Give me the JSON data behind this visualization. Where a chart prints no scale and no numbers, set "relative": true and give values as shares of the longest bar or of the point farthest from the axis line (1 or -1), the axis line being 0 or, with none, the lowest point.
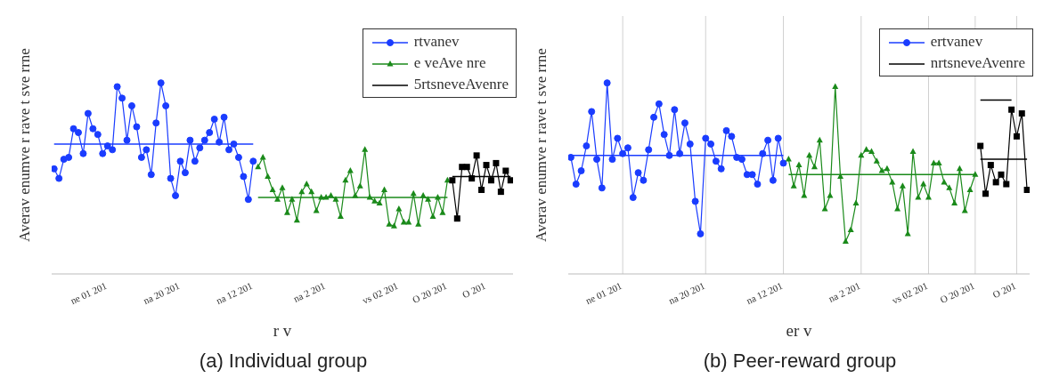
{
  "chart_data": [
    {
      "type": "line",
      "title": "(a) Individual group",
      "xlabel": "r  v",
      "ylabel": "Averav enumve r  rave t sve rrne",
      "relative": true,
      "legend": "top right",
      "line_style": "solid",
      "categories": [
        null,
        null,
        null,
        null,
        null,
        null,
        null,
        null,
        null,
        null,
        null,
        "ne 01 201",
        null,
        null,
        null,
        null,
        null,
        null,
        null,
        null,
        null,
        null,
        null,
        null,
        null,
        null,
        "na 20 201",
        null,
        null,
        null,
        null,
        null,
        null,
        null,
        null,
        null,
        null,
        null,
        null,
        null,
        null,
        "na 12 201",
        null,
        null,
        null,
        null,
        null,
        null,
        null,
        null,
        null,
        null,
        null,
        null,
        null,
        null,
        "na  2 201",
        null,
        null,
        null,
        null,
        null,
        null,
        null,
        null,
        null,
        null,
        null,
        null,
        null,
        null,
        "vs 02 201",
        null,
        null,
        null,
        null,
        null,
        null,
        null,
        null,
        null,
        "O 20 201",
        null,
        null,
        null,
        null,
        null,
        null,
        null,
        "O     201",
        null,
        null,
        null,
        null,
        null
      ],
      "series": [
        {
          "name": "rtvanev",
          "color": "#1a3cff",
          "marker": "circle",
          "values": [
            0.55,
            0.5,
            0.6,
            0.61,
            0.76,
            0.74,
            0.63,
            0.84,
            0.76,
            0.73,
            0.63,
            0.67,
            0.65,
            0.98,
            0.92,
            0.7,
            0.88,
            0.77,
            0.61,
            0.65,
            0.52,
            0.79,
            1,
            0.88,
            0.5,
            0.41,
            0.59,
            0.53,
            0.7,
            0.59,
            0.66,
            0.7,
            0.74,
            0.81,
            0.69,
            0.82,
            0.65,
            0.68,
            0.61,
            0.51,
            0.39,
            0.59,
            null,
            null,
            null,
            null,
            null,
            null,
            null,
            null,
            null,
            null,
            null,
            null,
            null,
            null,
            null,
            null,
            null,
            null,
            null,
            null,
            null,
            null,
            null,
            null,
            null,
            null,
            null,
            null,
            null,
            null,
            null,
            null,
            null,
            null,
            null,
            null,
            null,
            null,
            null,
            null,
            null,
            null,
            null,
            null,
            null,
            null,
            null,
            null,
            null,
            null,
            null,
            null,
            null
          ]
        },
        {
          "color": "#1a3cff",
          "marker": "none",
          "values": [
            0.68,
            0.68,
            0.68,
            0.68,
            0.68,
            0.68,
            0.68,
            0.68,
            0.68,
            0.68,
            0.68,
            0.68,
            0.68,
            0.68,
            0.68,
            0.68,
            0.68,
            0.68,
            0.68,
            0.68,
            0.68,
            0.68,
            0.68,
            0.68,
            0.68,
            0.68,
            0.68,
            0.68,
            0.68,
            0.68,
            0.68,
            0.68,
            0.68,
            0.68,
            0.68,
            0.68,
            0.68,
            0.68,
            0.68,
            0.68,
            0.68,
            0.68,
            null,
            null,
            null,
            null,
            null,
            null,
            null,
            null,
            null,
            null,
            null,
            null,
            null,
            null,
            null,
            null,
            null,
            null,
            null,
            null,
            null,
            null,
            null,
            null,
            null,
            null,
            null,
            null,
            null,
            null,
            null,
            null,
            null,
            null,
            null,
            null,
            null,
            null,
            null,
            null,
            null,
            null,
            null,
            null,
            null,
            null,
            null,
            null,
            null,
            null,
            null,
            null,
            null
          ]
        },
        {
          "name": "e veAve nre",
          "color": "#1a8a1a",
          "marker": "triangle",
          "values": [
            null,
            null,
            null,
            null,
            null,
            null,
            null,
            null,
            null,
            null,
            null,
            null,
            null,
            null,
            null,
            null,
            null,
            null,
            null,
            null,
            null,
            null,
            null,
            null,
            null,
            null,
            null,
            null,
            null,
            null,
            null,
            null,
            null,
            null,
            null,
            null,
            null,
            null,
            null,
            null,
            null,
            null,
            0.56,
            0.61,
            0.51,
            0.44,
            0.39,
            0.45,
            0.32,
            0.39,
            0.28,
            0.43,
            0.47,
            0.43,
            0.33,
            0.4,
            0.4,
            0.41,
            0.39,
            0.3,
            0.49,
            0.54,
            0.41,
            0.46,
            0.65,
            0.4,
            0.38,
            0.37,
            0.44,
            0.26,
            0.25,
            0.34,
            0.27,
            0.27,
            0.42,
            0.26,
            0.41,
            0.39,
            0.3,
            0.4,
            0.32,
            0.49,
            null,
            null,
            null,
            null,
            null,
            null,
            null,
            null,
            null,
            null,
            null,
            null,
            null
          ]
        },
        {
          "color": "#1a8a1a",
          "marker": "none",
          "values": [
            null,
            null,
            null,
            null,
            null,
            null,
            null,
            null,
            null,
            null,
            null,
            null,
            null,
            null,
            null,
            null,
            null,
            null,
            null,
            null,
            null,
            null,
            null,
            null,
            null,
            null,
            null,
            null,
            null,
            null,
            null,
            null,
            null,
            null,
            null,
            null,
            null,
            null,
            null,
            null,
            null,
            null,
            0.4,
            0.4,
            0.4,
            0.4,
            0.4,
            0.4,
            0.4,
            0.4,
            0.4,
            0.4,
            0.4,
            0.4,
            0.4,
            0.4,
            0.4,
            0.4,
            0.4,
            0.4,
            0.4,
            0.4,
            0.4,
            0.4,
            0.4,
            0.4,
            0.4,
            0.4,
            0.4,
            0.4,
            0.4,
            0.4,
            0.4,
            0.4,
            0.4,
            0.4,
            0.4,
            0.4,
            0.4,
            0.4,
            0.4,
            0.4,
            null,
            null,
            null,
            null,
            null,
            null,
            null,
            null,
            null,
            null,
            null,
            null,
            null
          ]
        },
        {
          "color": "#000000",
          "marker": "square",
          "values": [
            null,
            null,
            null,
            null,
            null,
            null,
            null,
            null,
            null,
            null,
            null,
            null,
            null,
            null,
            null,
            null,
            null,
            null,
            null,
            null,
            null,
            null,
            null,
            null,
            null,
            null,
            null,
            null,
            null,
            null,
            null,
            null,
            null,
            null,
            null,
            null,
            null,
            null,
            null,
            null,
            null,
            null,
            null,
            null,
            null,
            null,
            null,
            null,
            null,
            null,
            null,
            null,
            null,
            null,
            null,
            null,
            null,
            null,
            null,
            null,
            null,
            null,
            null,
            null,
            null,
            null,
            null,
            null,
            null,
            null,
            null,
            null,
            null,
            null,
            null,
            null,
            null,
            null,
            null,
            null,
            null,
            null,
            0.49,
            0.29,
            0.56,
            0.56,
            0.5,
            0.62,
            0.44,
            0.57,
            0.49,
            0.58,
            0.43,
            0.54,
            0.49
          ]
        },
        {
          "name": "5rtsneveAvenre",
          "color": "#000000",
          "marker": "none",
          "values": [
            null,
            null,
            null,
            null,
            null,
            null,
            null,
            null,
            null,
            null,
            null,
            null,
            null,
            null,
            null,
            null,
            null,
            null,
            null,
            null,
            null,
            null,
            null,
            null,
            null,
            null,
            null,
            null,
            null,
            null,
            null,
            null,
            null,
            null,
            null,
            null,
            null,
            null,
            null,
            null,
            null,
            null,
            null,
            null,
            null,
            null,
            null,
            null,
            null,
            null,
            null,
            null,
            null,
            null,
            null,
            null,
            null,
            null,
            null,
            null,
            null,
            null,
            null,
            null,
            null,
            null,
            null,
            null,
            null,
            null,
            null,
            null,
            null,
            null,
            null,
            null,
            null,
            null,
            null,
            null,
            null,
            null,
            0.51,
            0.51,
            0.51,
            0.51,
            0.51,
            0.51,
            0.51,
            0.51,
            0.51,
            0.51,
            0.51,
            0.51,
            0.51
          ]
        }
      ]
    },
    {
      "type": "line",
      "title": "(b) Peer-reward group",
      "xlabel": "er v",
      "ylabel": "Averav enumve r  rave t sve rrne",
      "relative": true,
      "grid": "x",
      "legend": "top right",
      "line_style": "solid",
      "categories": [
        null,
        null,
        null,
        null,
        null,
        null,
        null,
        null,
        null,
        null,
        "ne 01 201",
        null,
        null,
        null,
        null,
        null,
        null,
        null,
        null,
        null,
        null,
        null,
        null,
        null,
        null,
        null,
        "na 20 201",
        null,
        null,
        null,
        null,
        null,
        null,
        null,
        null,
        null,
        null,
        null,
        null,
        null,
        null,
        "na 12 201",
        null,
        null,
        null,
        null,
        null,
        null,
        null,
        null,
        null,
        null,
        null,
        null,
        null,
        null,
        "na  2 201",
        null,
        null,
        null,
        null,
        null,
        null,
        null,
        null,
        null,
        null,
        null,
        null,
        "vs 02 201",
        null,
        null,
        null,
        null,
        null,
        null,
        null,
        null,
        "O 20 201",
        null,
        null,
        null,
        null,
        null,
        null,
        null,
        "O     201",
        null,
        null
      ],
      "series": [
        {
          "name": "ertvanev",
          "color": "#1a3cff",
          "marker": "circle",
          "values": [
            0.61,
            0.47,
            0.54,
            0.67,
            0.85,
            0.6,
            0.45,
            1,
            0.6,
            0.71,
            0.63,
            0.66,
            0.4,
            0.53,
            0.49,
            0.65,
            0.82,
            0.89,
            0.73,
            0.62,
            0.86,
            0.63,
            0.79,
            0.68,
            0.38,
            0.21,
            0.71,
            0.68,
            0.59,
            0.55,
            0.75,
            0.72,
            0.61,
            0.6,
            0.52,
            0.52,
            0.47,
            0.63,
            0.7,
            0.49,
            0.71,
            0.58,
            null,
            null,
            null,
            null,
            null,
            null,
            null,
            null,
            null,
            null,
            null,
            null,
            null,
            null,
            null,
            null,
            null,
            null,
            null,
            null,
            null,
            null,
            null,
            null,
            null,
            null,
            null,
            null,
            null,
            null,
            null,
            null,
            null,
            null,
            null,
            null,
            null,
            null,
            null,
            null,
            null,
            null,
            null,
            null,
            null,
            null,
            null
          ]
        },
        {
          "color": "#1a3cff",
          "marker": "none",
          "values": [
            0.62,
            0.62,
            0.62,
            0.62,
            0.62,
            0.62,
            0.62,
            0.62,
            0.62,
            0.62,
            0.62,
            0.62,
            0.62,
            0.62,
            0.62,
            0.62,
            0.62,
            0.62,
            0.62,
            0.62,
            0.62,
            0.62,
            0.62,
            0.62,
            0.62,
            0.62,
            0.62,
            0.62,
            0.62,
            0.62,
            0.62,
            0.62,
            0.62,
            0.62,
            0.62,
            0.62,
            0.62,
            0.62,
            0.62,
            0.62,
            0.62,
            0.62,
            null,
            null,
            null,
            null,
            null,
            null,
            null,
            null,
            null,
            null,
            null,
            null,
            null,
            null,
            null,
            null,
            null,
            null,
            null,
            null,
            null,
            null,
            null,
            null,
            null,
            null,
            null,
            null,
            null,
            null,
            null,
            null,
            null,
            null,
            null,
            null,
            null,
            null,
            null,
            null,
            null,
            null,
            null,
            null,
            null,
            null,
            null
          ]
        },
        {
          "color": "#1a8a1a",
          "marker": "triangle",
          "values": [
            null,
            null,
            null,
            null,
            null,
            null,
            null,
            null,
            null,
            null,
            null,
            null,
            null,
            null,
            null,
            null,
            null,
            null,
            null,
            null,
            null,
            null,
            null,
            null,
            null,
            null,
            null,
            null,
            null,
            null,
            null,
            null,
            null,
            null,
            null,
            null,
            null,
            null,
            null,
            null,
            null,
            null,
            0.6,
            0.46,
            0.57,
            0.41,
            0.62,
            0.56,
            0.7,
            0.34,
            0.41,
            0.98,
            0.51,
            0.17,
            0.23,
            0.37,
            0.62,
            0.65,
            0.64,
            0.59,
            0.54,
            0.55,
            0.48,
            0.34,
            0.46,
            0.21,
            0.64,
            0.4,
            0.47,
            0.4,
            0.58,
            0.58,
            0.48,
            0.45,
            0.37,
            0.55,
            0.33,
            0.44,
            0.52,
            null,
            null,
            null,
            null,
            null,
            null,
            null,
            null,
            null,
            null
          ]
        },
        {
          "color": "#1a8a1a",
          "marker": "none",
          "values": [
            null,
            null,
            null,
            null,
            null,
            null,
            null,
            null,
            null,
            null,
            null,
            null,
            null,
            null,
            null,
            null,
            null,
            null,
            null,
            null,
            null,
            null,
            null,
            null,
            null,
            null,
            null,
            null,
            null,
            null,
            null,
            null,
            null,
            null,
            null,
            null,
            null,
            null,
            null,
            null,
            null,
            null,
            0.52,
            0.52,
            0.52,
            0.52,
            0.52,
            0.52,
            0.52,
            0.52,
            0.52,
            0.52,
            0.52,
            0.52,
            0.52,
            0.52,
            0.52,
            0.52,
            0.52,
            0.52,
            0.52,
            0.52,
            0.52,
            0.52,
            0.52,
            0.52,
            0.52,
            0.52,
            0.52,
            0.52,
            0.52,
            0.52,
            0.52,
            0.52,
            0.52,
            0.52,
            0.52,
            0.52,
            0.52,
            null,
            null,
            null,
            null,
            null,
            null,
            null,
            null,
            null,
            null
          ]
        },
        {
          "color": "#000000",
          "marker": "square",
          "values": [
            null,
            null,
            null,
            null,
            null,
            null,
            null,
            null,
            null,
            null,
            null,
            null,
            null,
            null,
            null,
            null,
            null,
            null,
            null,
            null,
            null,
            null,
            null,
            null,
            null,
            null,
            null,
            null,
            null,
            null,
            null,
            null,
            null,
            null,
            null,
            null,
            null,
            null,
            null,
            null,
            null,
            null,
            null,
            null,
            null,
            null,
            null,
            null,
            null,
            null,
            null,
            null,
            null,
            null,
            null,
            null,
            null,
            null,
            null,
            null,
            null,
            null,
            null,
            null,
            null,
            null,
            null,
            null,
            null,
            null,
            null,
            null,
            null,
            null,
            null,
            null,
            null,
            null,
            null,
            0.67,
            0.42,
            0.57,
            0.48,
            0.52,
            0.47,
            0.86,
            0.72,
            0.84,
            0.44
          ]
        },
        {
          "name": "nrtsneveAvenre",
          "color": "#000000",
          "marker": "none",
          "values": [
            null,
            null,
            null,
            null,
            null,
            null,
            null,
            null,
            null,
            null,
            null,
            null,
            null,
            null,
            null,
            null,
            null,
            null,
            null,
            null,
            null,
            null,
            null,
            null,
            null,
            null,
            null,
            null,
            null,
            null,
            null,
            null,
            null,
            null,
            null,
            null,
            null,
            null,
            null,
            null,
            null,
            null,
            null,
            null,
            null,
            null,
            null,
            null,
            null,
            null,
            null,
            null,
            null,
            null,
            null,
            null,
            null,
            null,
            null,
            null,
            null,
            null,
            null,
            null,
            null,
            null,
            null,
            null,
            null,
            null,
            null,
            null,
            null,
            null,
            null,
            null,
            null,
            null,
            null,
            0.6,
            0.6,
            0.6,
            0.6,
            0.6,
            0.6,
            0.6,
            0.6,
            0.6,
            0.6
          ]
        },
        {
          "color": "#000000",
          "marker": "none",
          "values": [
            null,
            null,
            null,
            null,
            null,
            null,
            null,
            null,
            null,
            null,
            null,
            null,
            null,
            null,
            null,
            null,
            null,
            null,
            null,
            null,
            null,
            null,
            null,
            null,
            null,
            null,
            null,
            null,
            null,
            null,
            null,
            null,
            null,
            null,
            null,
            null,
            null,
            null,
            null,
            null,
            null,
            null,
            null,
            null,
            null,
            null,
            null,
            null,
            null,
            null,
            null,
            null,
            null,
            null,
            null,
            null,
            null,
            null,
            null,
            null,
            null,
            null,
            null,
            null,
            null,
            null,
            null,
            null,
            null,
            null,
            null,
            null,
            null,
            null,
            null,
            null,
            null,
            null,
            null,
            0.91,
            0.91,
            0.91,
            0.91,
            0.91,
            0.91,
            0.91,
            null,
            null,
            null
          ]
        }
      ]
    }
  ]
}
